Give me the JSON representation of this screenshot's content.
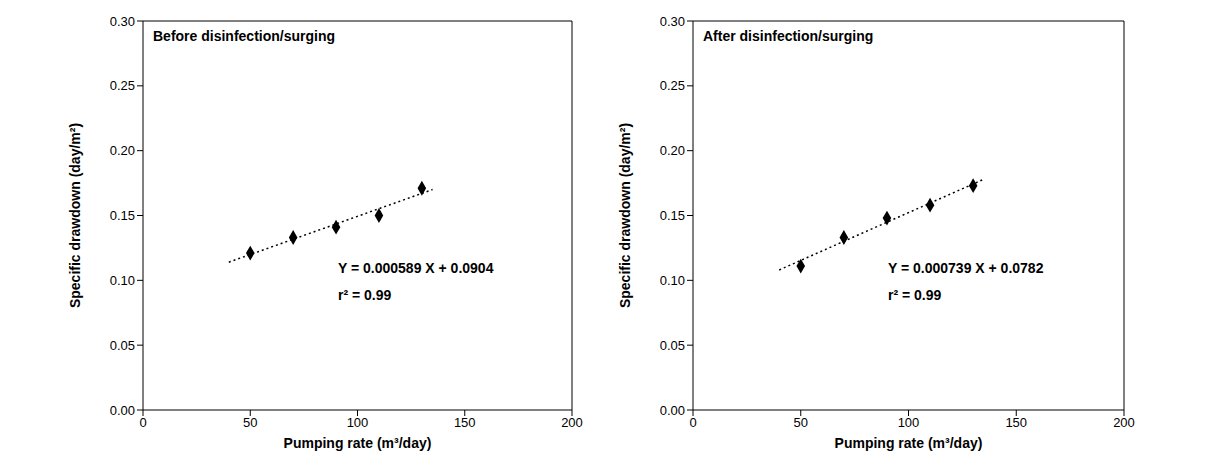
{
  "chart_data": [
    {
      "type": "scatter",
      "title": "Before disinfection/surging",
      "x_label": "Pumping rate (m³/day)",
      "y_label": "Specific drawdown (day/m²)",
      "x": [
        50,
        70,
        90,
        110,
        130
      ],
      "values": [
        0.121,
        0.133,
        0.141,
        0.15,
        0.171
      ],
      "color": "#000000",
      "marker": "diamond",
      "trend_line": {
        "x": [
          40,
          135
        ],
        "values": [
          0.114,
          0.17
        ],
        "line_style": "dotted"
      },
      "annotations": [
        "Y = 0.000589 X + 0.0904",
        "r² = 0.99"
      ],
      "xlim": [
        0,
        200
      ],
      "xticks": [
        0,
        50,
        100,
        150,
        200
      ],
      "ylim": [
        0,
        0.3
      ],
      "yticks": [
        {
          "value": 0,
          "label": "0.00"
        },
        {
          "value": 0.05,
          "label": "0.05"
        },
        {
          "value": 0.1,
          "label": "0.10"
        },
        {
          "value": 0.15,
          "label": "0.15"
        },
        {
          "value": 0.2,
          "label": "0.20"
        },
        {
          "value": 0.25,
          "label": "0.25"
        },
        {
          "value": 0.3,
          "label": "0.30"
        }
      ],
      "grid": false
    },
    {
      "type": "scatter",
      "title": "After disinfection/surging",
      "x_label": "Pumping rate (m³/day)",
      "y_label": "Specific drawdown (day/m²)",
      "x": [
        50,
        70,
        90,
        110,
        130
      ],
      "values": [
        0.111,
        0.133,
        0.148,
        0.158,
        0.173
      ],
      "color": "#000000",
      "marker": "diamond",
      "trend_line": {
        "x": [
          40,
          135
        ],
        "values": [
          0.108,
          0.178
        ],
        "line_style": "dotted"
      },
      "annotations": [
        "Y = 0.000739 X + 0.0782",
        "r² = 0.99"
      ],
      "xlim": [
        0,
        200
      ],
      "xticks": [
        0,
        50,
        100,
        150,
        200
      ],
      "ylim": [
        0,
        0.3
      ],
      "yticks": [
        {
          "value": 0,
          "label": "0.00"
        },
        {
          "value": 0.05,
          "label": "0.05"
        },
        {
          "value": 0.1,
          "label": "0.10"
        },
        {
          "value": 0.15,
          "label": "0.15"
        },
        {
          "value": 0.2,
          "label": "0.20"
        },
        {
          "value": 0.25,
          "label": "0.25"
        },
        {
          "value": 0.3,
          "label": "0.30"
        }
      ],
      "grid": false
    }
  ]
}
